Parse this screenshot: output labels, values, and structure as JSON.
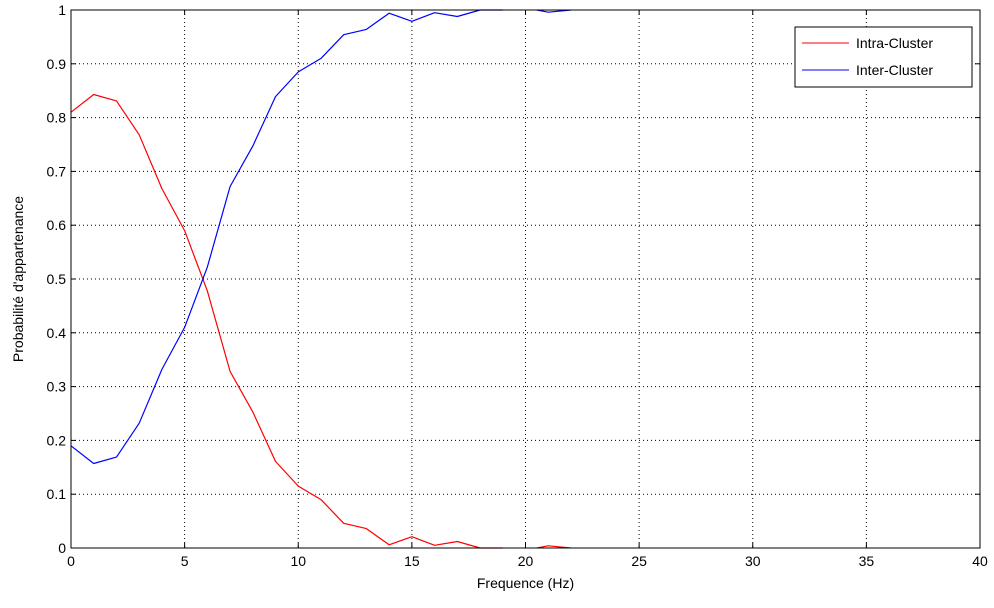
{
  "chart_data": {
    "type": "line",
    "title": "",
    "xlabel": "Frequence (Hz)",
    "ylabel": "Probabilité d'appartenance",
    "xlim": [
      0,
      40
    ],
    "ylim": [
      0,
      1
    ],
    "xticks": [
      0,
      5,
      10,
      15,
      20,
      25,
      30,
      35,
      40
    ],
    "yticks": [
      0,
      0.1,
      0.2,
      0.3,
      0.4,
      0.5,
      0.6,
      0.7,
      0.8,
      0.9,
      1
    ],
    "xtick_labels": [
      "0",
      "5",
      "10",
      "15",
      "20",
      "25",
      "30",
      "35",
      "40"
    ],
    "ytick_labels": [
      "0",
      "0.1",
      "0.2",
      "0.3",
      "0.4",
      "0.5",
      "0.6",
      "0.7",
      "0.8",
      "0.9",
      "1"
    ],
    "grid": true,
    "legend_position": "top-right",
    "series": [
      {
        "name": "Intra-Cluster",
        "color": "#ff0000",
        "segments": [
          [
            [
              0,
              0.81
            ],
            [
              1,
              0.843
            ],
            [
              2,
              0.831
            ],
            [
              3,
              0.768
            ],
            [
              4,
              0.668
            ],
            [
              5,
              0.59
            ],
            [
              6,
              0.478
            ],
            [
              7,
              0.328
            ],
            [
              8,
              0.253
            ],
            [
              9,
              0.161
            ],
            [
              10,
              0.115
            ],
            [
              11,
              0.09
            ],
            [
              12,
              0.046
            ],
            [
              13,
              0.036
            ],
            [
              14,
              0.006
            ],
            [
              15,
              0.021
            ],
            [
              16,
              0.005
            ],
            [
              17,
              0.012
            ],
            [
              18,
              0.0
            ],
            [
              19,
              0.0
            ]
          ],
          [
            [
              20.5,
              0.0
            ],
            [
              21,
              0.004
            ],
            [
              22,
              0.0
            ]
          ]
        ]
      },
      {
        "name": "Inter-Cluster",
        "color": "#0000ff",
        "segments": [
          [
            [
              0,
              0.19
            ],
            [
              1,
              0.157
            ],
            [
              2,
              0.169
            ],
            [
              3,
              0.232
            ],
            [
              4,
              0.332
            ],
            [
              5,
              0.41
            ],
            [
              6,
              0.522
            ],
            [
              7,
              0.672
            ],
            [
              8,
              0.747
            ],
            [
              9,
              0.839
            ],
            [
              10,
              0.885
            ],
            [
              11,
              0.91
            ],
            [
              12,
              0.954
            ],
            [
              13,
              0.964
            ],
            [
              14,
              0.994
            ],
            [
              15,
              0.979
            ],
            [
              16,
              0.995
            ],
            [
              17,
              0.988
            ],
            [
              18,
              1.0
            ],
            [
              19,
              1.0
            ]
          ],
          [
            [
              20.5,
              1.0
            ],
            [
              21,
              0.996
            ],
            [
              22,
              1.0
            ]
          ]
        ]
      }
    ]
  }
}
